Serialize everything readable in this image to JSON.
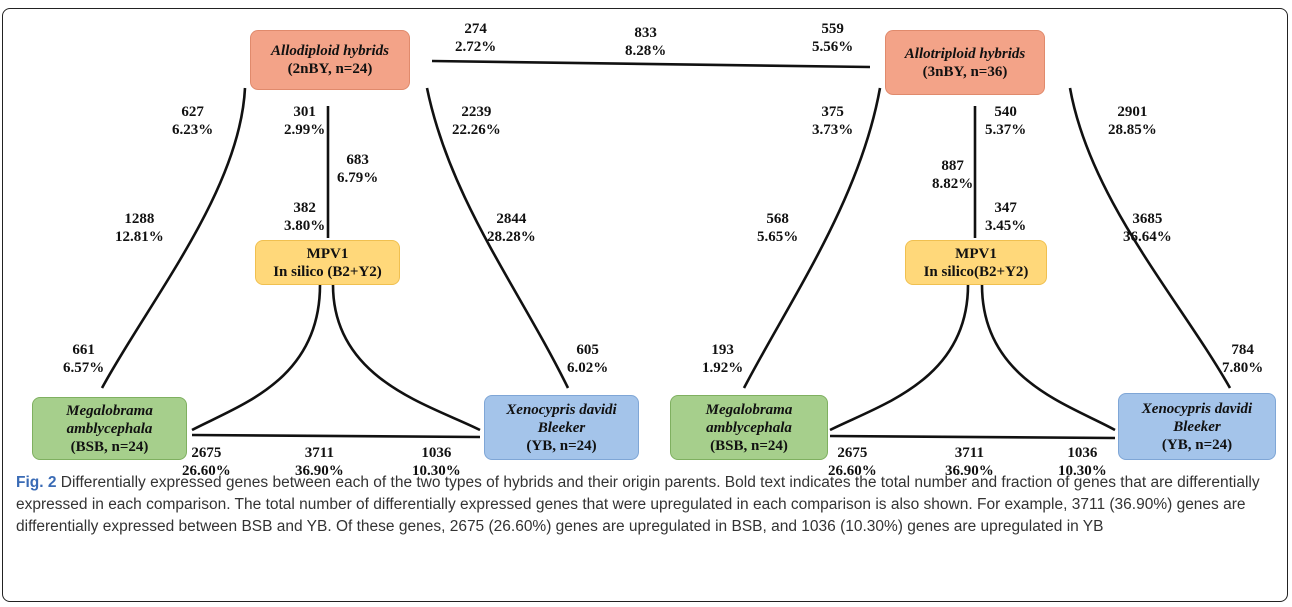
{
  "nodes": {
    "allodiploid": {
      "line1": "Allodiploid hybrids",
      "line2": "(2nBY, n=24)",
      "color": "#f3a388"
    },
    "allotriploid": {
      "line1": "Allotriploid hybrids",
      "line2": "(3nBY, n=36)",
      "color": "#f3a388"
    },
    "mpv_left": {
      "line1": "MPV1",
      "line2": "In silico (B2+Y2)",
      "color": "#ffd87a"
    },
    "mpv_right": {
      "line1": "MPV1",
      "line2": "In silico(B2+Y2)",
      "color": "#ffd87a"
    },
    "bsb_left": {
      "line1": "Megalobrama",
      "line2": "amblycephala",
      "line3": "(BSB, n=24)",
      "color": "#a6cf8c"
    },
    "yb_left": {
      "line1": "Xenocypris davidi",
      "line2": "Bleeker",
      "line3": "(YB, n=24)",
      "color": "#a4c4ea"
    },
    "bsb_right": {
      "line1": "Megalobrama",
      "line2": "amblycephala",
      "line3": "(BSB, n=24)",
      "color": "#a6cf8c"
    },
    "yb_right": {
      "line1": "Xenocypris davidi",
      "line2": "Bleeker",
      "line3": "(YB, n=24)",
      "color": "#a4c4ea"
    }
  },
  "labels": {
    "top_left": {
      "n": "274",
      "p": "2.72%"
    },
    "top_mid": {
      "n": "833",
      "p": "8.28%"
    },
    "top_right": {
      "n": "559",
      "p": "5.56%"
    },
    "l_627": {
      "n": "627",
      "p": "6.23%"
    },
    "l_1288": {
      "n": "1288",
      "p": "12.81%"
    },
    "l_661": {
      "n": "661",
      "p": "6.57%"
    },
    "l_301": {
      "n": "301",
      "p": "2.99%"
    },
    "l_683": {
      "n": "683",
      "p": "6.79%"
    },
    "l_382": {
      "n": "382",
      "p": "3.80%"
    },
    "l_2239": {
      "n": "2239",
      "p": "22.26%"
    },
    "l_2844": {
      "n": "2844",
      "p": "28.28%"
    },
    "l_605": {
      "n": "605",
      "p": "6.02%"
    },
    "l_2675": {
      "n": "2675",
      "p": "26.60%"
    },
    "l_3711": {
      "n": "3711",
      "p": "36.90%"
    },
    "l_1036": {
      "n": "1036",
      "p": "10.30%"
    },
    "r_375": {
      "n": "375",
      "p": "3.73%"
    },
    "r_568": {
      "n": "568",
      "p": "5.65%"
    },
    "r_193": {
      "n": "193",
      "p": "1.92%"
    },
    "r_540": {
      "n": "540",
      "p": "5.37%"
    },
    "r_887": {
      "n": "887",
      "p": "8.82%"
    },
    "r_347": {
      "n": "347",
      "p": "3.45%"
    },
    "r_2901": {
      "n": "2901",
      "p": "28.85%"
    },
    "r_3685": {
      "n": "3685",
      "p": "36.64%"
    },
    "r_784": {
      "n": "784",
      "p": "7.80%"
    },
    "r_2675": {
      "n": "2675",
      "p": "26.60%"
    },
    "r_3711": {
      "n": "3711",
      "p": "36.90%"
    },
    "r_1036": {
      "n": "1036",
      "p": "10.30%"
    }
  },
  "caption": {
    "label": "Fig. 2",
    "text": " Differentially expressed genes between each of the two types of hybrids and their origin parents. Bold text indicates the total number and fraction of genes that are differentially expressed in each comparison. The total number of differentially expressed genes that were upregulated in each comparison is also shown. For example, 3711 (36.90%) genes are differentially expressed between BSB and YB. Of these genes, 2675 (26.60%) genes are upregulated in BSB, and 1036 (10.30%) genes are upregulated in YB"
  }
}
